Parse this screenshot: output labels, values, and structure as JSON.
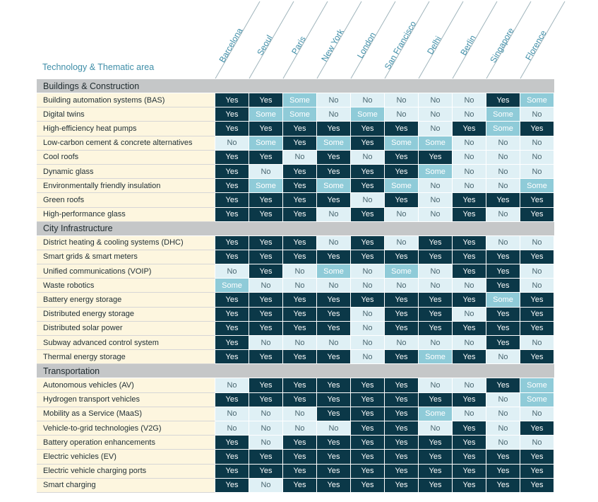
{
  "header": {
    "title": "Technology & Thematic area",
    "cities": [
      "Barcelona",
      "Seoul",
      "Paris",
      "New York",
      "London",
      "San Francisco",
      "Delhi",
      "Berlin",
      "Singapore",
      "Florence"
    ]
  },
  "colors": {
    "yes": "#0b3848",
    "some": "#8fcbd8",
    "no": "#dff0f5",
    "label_bg": "#fdf6df",
    "section_bg": "#c5c7c8",
    "header_text": "#3f8ea8"
  },
  "sections": [
    {
      "title": "Buildings & Construction",
      "rows": [
        {
          "label": "Building automation systems (BAS)",
          "values": [
            "Yes",
            "Yes",
            "Some",
            "No",
            "No",
            "No",
            "No",
            "No",
            "Yes",
            "Some"
          ]
        },
        {
          "label": "Digital twins",
          "values": [
            "Yes",
            "Some",
            "Some",
            "No",
            "Some",
            "No",
            "No",
            "No",
            "Some",
            "No"
          ]
        },
        {
          "label": "High-efficiency heat pumps",
          "values": [
            "Yes",
            "Yes",
            "Yes",
            "Yes",
            "Yes",
            "Yes",
            "No",
            "Yes",
            "Some",
            "Yes"
          ]
        },
        {
          "label": "Low-carbon cement & concrete alternatives",
          "values": [
            "No",
            "Some",
            "Yes",
            "Some",
            "Yes",
            "Some",
            "Some",
            "No",
            "No",
            "No"
          ]
        },
        {
          "label": "Cool roofs",
          "values": [
            "Yes",
            "Yes",
            "No",
            "Yes",
            "No",
            "Yes",
            "Yes",
            "No",
            "No",
            "No"
          ]
        },
        {
          "label": "Dynamic glass",
          "values": [
            "Yes",
            "No",
            "Yes",
            "Yes",
            "Yes",
            "Yes",
            "Some",
            "No",
            "No",
            "No"
          ]
        },
        {
          "label": "Environmentally friendly insulation",
          "values": [
            "Yes",
            "Some",
            "Yes",
            "Some",
            "Yes",
            "Some",
            "No",
            "No",
            "No",
            "Some"
          ]
        },
        {
          "label": "Green roofs",
          "values": [
            "Yes",
            "Yes",
            "Yes",
            "Yes",
            "No",
            "Yes",
            "No",
            "Yes",
            "Yes",
            "Yes"
          ]
        },
        {
          "label": "High-performance glass",
          "values": [
            "Yes",
            "Yes",
            "Yes",
            "No",
            "Yes",
            "No",
            "No",
            "Yes",
            "No",
            "Yes"
          ]
        }
      ]
    },
    {
      "title": "City Infrastructure",
      "rows": [
        {
          "label": "District heating & cooling systems (DHC)",
          "values": [
            "Yes",
            "Yes",
            "Yes",
            "No",
            "Yes",
            "No",
            "Yes",
            "Yes",
            "No",
            "No"
          ]
        },
        {
          "label": "Smart grids & smart meters",
          "values": [
            "Yes",
            "Yes",
            "Yes",
            "Yes",
            "Yes",
            "Yes",
            "Yes",
            "Yes",
            "Yes",
            "Yes"
          ]
        },
        {
          "label": "Unified communications (VOIP)",
          "values": [
            "No",
            "Yes",
            "No",
            "Some",
            "No",
            "Some",
            "No",
            "Yes",
            "Yes",
            "No"
          ]
        },
        {
          "label": "Waste robotics",
          "values": [
            "Some",
            "No",
            "No",
            "No",
            "No",
            "No",
            "No",
            "No",
            "Yes",
            "No"
          ]
        },
        {
          "label": "Battery energy storage",
          "values": [
            "Yes",
            "Yes",
            "Yes",
            "Yes",
            "Yes",
            "Yes",
            "Yes",
            "Yes",
            "Some",
            "Yes"
          ]
        },
        {
          "label": "Distributed energy storage",
          "values": [
            "Yes",
            "Yes",
            "Yes",
            "Yes",
            "No",
            "Yes",
            "Yes",
            "No",
            "Yes",
            "Yes"
          ]
        },
        {
          "label": "Distributed solar power",
          "values": [
            "Yes",
            "Yes",
            "Yes",
            "Yes",
            "No",
            "Yes",
            "Yes",
            "Yes",
            "Yes",
            "Yes"
          ]
        },
        {
          "label": "Subway advanced control system",
          "values": [
            "Yes",
            "No",
            "No",
            "No",
            "No",
            "No",
            "No",
            "No",
            "Yes",
            "No"
          ]
        },
        {
          "label": "Thermal energy storage",
          "values": [
            "Yes",
            "Yes",
            "Yes",
            "Yes",
            "No",
            "Yes",
            "Some",
            "Yes",
            "No",
            "Yes"
          ]
        }
      ]
    },
    {
      "title": "Transportation",
      "rows": [
        {
          "label": "Autonomous vehicles (AV)",
          "values": [
            "No",
            "Yes",
            "Yes",
            "Yes",
            "Yes",
            "Yes",
            "No",
            "No",
            "Yes",
            "Some"
          ]
        },
        {
          "label": "Hydrogen transport vehicles",
          "values": [
            "Yes",
            "Yes",
            "Yes",
            "Yes",
            "Yes",
            "Yes",
            "Yes",
            "Yes",
            "No",
            "Some"
          ]
        },
        {
          "label": "Mobility as a Service (MaaS)",
          "values": [
            "No",
            "No",
            "No",
            "Yes",
            "Yes",
            "Yes",
            "Some",
            "No",
            "No",
            "No"
          ]
        },
        {
          "label": "Vehicle-to-grid technologies (V2G)",
          "values": [
            "No",
            "No",
            "No",
            "No",
            "Yes",
            "Yes",
            "No",
            "Yes",
            "No",
            "Yes"
          ]
        },
        {
          "label": "Battery operation enhancements",
          "values": [
            "Yes",
            "No",
            "Yes",
            "Yes",
            "Yes",
            "Yes",
            "Yes",
            "Yes",
            "No",
            "No"
          ]
        },
        {
          "label": "Electric vehicles (EV)",
          "values": [
            "Yes",
            "Yes",
            "Yes",
            "Yes",
            "Yes",
            "Yes",
            "Yes",
            "Yes",
            "Yes",
            "Yes"
          ]
        },
        {
          "label": "Electric vehicle charging ports",
          "values": [
            "Yes",
            "Yes",
            "Yes",
            "Yes",
            "Yes",
            "Yes",
            "Yes",
            "Yes",
            "Yes",
            "Yes"
          ]
        },
        {
          "label": "Smart charging",
          "values": [
            "Yes",
            "No",
            "Yes",
            "Yes",
            "Yes",
            "Yes",
            "Yes",
            "Yes",
            "Yes",
            "Yes"
          ]
        }
      ]
    }
  ]
}
